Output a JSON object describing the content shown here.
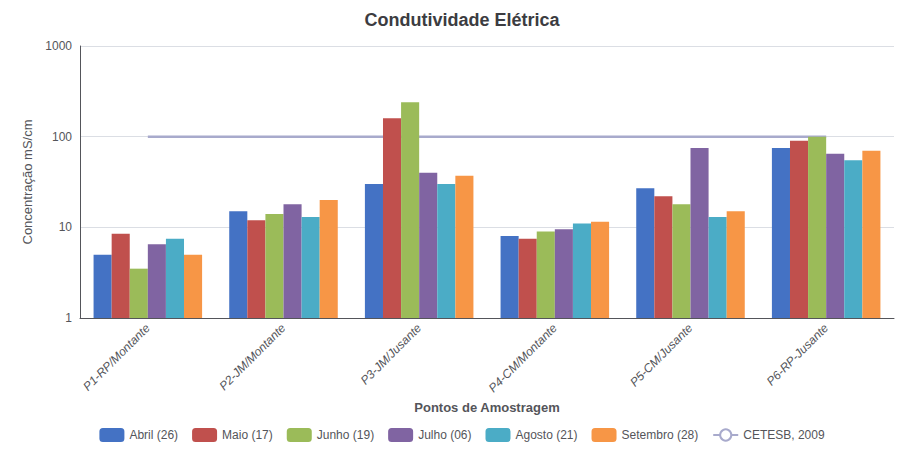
{
  "chart_data": {
    "type": "bar",
    "title": "Condutividade Elétrica",
    "xlabel": "Pontos de Amostragem",
    "ylabel": "Concentração mS/cm",
    "categories": [
      "P1-RP/Montante",
      "P2-JM/Montante",
      "P3-JM/Jusante",
      "P4-CM/Montante",
      "P5-CM/Jusante",
      "P6-RP-Jusante"
    ],
    "series": [
      {
        "name": "Abril (26)",
        "color": "#4472C4",
        "values": [
          5.0,
          15.0,
          30.0,
          8.0,
          27.0,
          75.0
        ]
      },
      {
        "name": "Maio (17)",
        "color": "#C0504D",
        "values": [
          8.5,
          12.0,
          160.0,
          7.5,
          22.0,
          90.0
        ]
      },
      {
        "name": "Junho (19)",
        "color": "#9BBB59",
        "values": [
          3.5,
          14.0,
          240.0,
          9.0,
          18.0,
          100.0
        ]
      },
      {
        "name": "Julho (06)",
        "color": "#8064A2",
        "values": [
          6.5,
          18.0,
          40.0,
          9.5,
          75.0,
          65.0
        ]
      },
      {
        "name": "Agosto (21)",
        "color": "#4BACC6",
        "values": [
          7.5,
          13.0,
          30.0,
          11.0,
          13.0,
          55.0
        ]
      },
      {
        "name": "Setembro (28)",
        "color": "#F79646",
        "values": [
          5.0,
          20.0,
          37.0,
          11.5,
          15.0,
          70.0
        ]
      },
      {
        "name": "CETESB, 2009",
        "type": "line",
        "color": "#A8AACC",
        "values": [
          100,
          100,
          100,
          100,
          100,
          100
        ]
      }
    ],
    "log": "y",
    "ylim": [
      1,
      1000
    ],
    "yticks": [
      1,
      10,
      100,
      1000
    ],
    "grid": true,
    "legend": "bottom"
  }
}
